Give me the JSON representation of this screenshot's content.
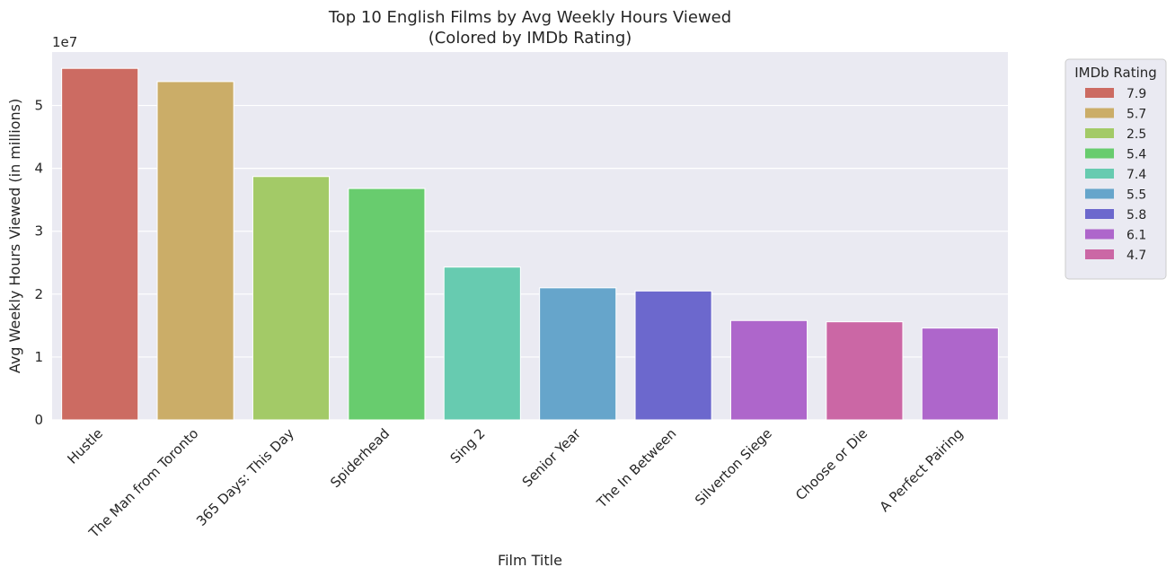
{
  "chart_data": {
    "type": "bar",
    "title": "Top 10 English Films by Avg Weekly Hours Viewed",
    "subtitle": "(Colored by IMDb Rating)",
    "xlabel": "Film Title",
    "ylabel": "Avg Weekly Hours Viewed (in millions)",
    "y_offset_label": "1e7",
    "ylim": [
      0,
      5.85
    ],
    "yticks": [
      0,
      1,
      2,
      3,
      4,
      5
    ],
    "grid": true,
    "legend": {
      "title": "IMDb Rating",
      "placement": "outside-right",
      "entries": [
        {
          "label": "7.9",
          "color": "#cc6b62"
        },
        {
          "label": "5.7",
          "color": "#cbad68"
        },
        {
          "label": "2.5",
          "color": "#a3ca67"
        },
        {
          "label": "5.4",
          "color": "#68cc6e"
        },
        {
          "label": "7.4",
          "color": "#67cbb0"
        },
        {
          "label": "5.5",
          "color": "#66a5cb"
        },
        {
          "label": "5.8",
          "color": "#6c68cd"
        },
        {
          "label": "6.1",
          "color": "#ae66cb"
        },
        {
          "label": "4.7",
          "color": "#cb67a5"
        }
      ]
    },
    "categories": [
      "Hustle",
      "The Man from Toronto",
      "365 Days: This Day",
      "Spiderhead",
      "Sing 2",
      "Senior Year",
      "The In Between",
      "Silverton Siege",
      "Choose or Die",
      "A Perfect Pairing"
    ],
    "values": [
      5.59,
      5.38,
      3.87,
      3.68,
      2.43,
      2.1,
      2.05,
      1.58,
      1.56,
      1.46
    ],
    "ratings": [
      "7.9",
      "5.7",
      "2.5",
      "5.4",
      "7.4",
      "5.5",
      "5.8",
      "6.1",
      "4.7",
      "6.1"
    ],
    "colors": [
      "#cc6b62",
      "#cbad68",
      "#a3ca67",
      "#68cc6e",
      "#67cbb0",
      "#66a5cb",
      "#6c68cd",
      "#ae66cb",
      "#cb67a5",
      "#ae66cb"
    ]
  }
}
